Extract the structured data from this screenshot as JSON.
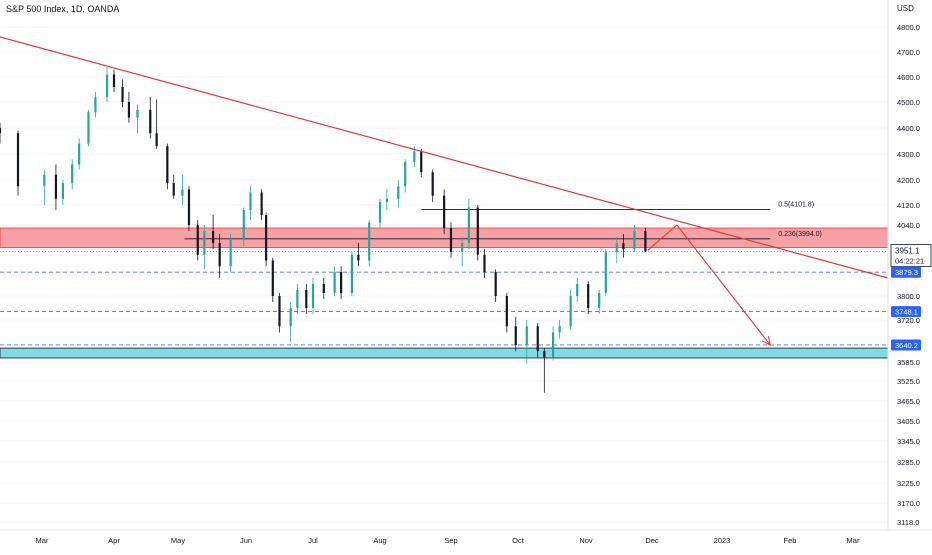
{
  "header": {
    "title": "S&P 500 Index, 1D, OANDA",
    "currency": "USD"
  },
  "colors": {
    "up": "#26a69a",
    "down": "#131722",
    "trendline": "#e53935",
    "resistance_zone": "#f7a1a6",
    "support_zone": "#7fdbe6",
    "arrow": "#e53935",
    "dashed": "#5b6ee1",
    "price_tag": "#2962ff",
    "grid": "#f0f3fa"
  },
  "chart_data": {
    "type": "candlestick",
    "title": "S&P 500 Index, 1D, OANDA",
    "ylabel": "USD",
    "ylim": [
      3080,
      4860
    ],
    "y_ticks": [
      "4800.0",
      "4700.0",
      "4600.0",
      "4500.0",
      "4400.0",
      "4300.0",
      "4200.0",
      "4120.0",
      "4040.0",
      "3960.0",
      "3880.0",
      "3800.0",
      "3720.0",
      "3640.0",
      "3585.0",
      "3525.0",
      "3465.0",
      "3405.0",
      "3345.0",
      "3285.0",
      "3225.0",
      "3170.0",
      "3118.0"
    ],
    "x_ticks": [
      "Mar",
      "Apr",
      "May",
      "Jun",
      "Jul",
      "Aug",
      "Sep",
      "Oct",
      "Nov",
      "Dec",
      "2023",
      "Feb",
      "Mar"
    ],
    "x_range": [
      "2022-02-22",
      "2023-03-20"
    ],
    "candles": [
      [
        "2022-02-22",
        4400,
        4420,
        4340,
        4380
      ],
      [
        "2022-02-25",
        4380,
        4390,
        4150,
        4180
      ],
      [
        "2022-03-02",
        4180,
        4240,
        4120,
        4220
      ],
      [
        "2022-03-07",
        4220,
        4260,
        4100,
        4140
      ],
      [
        "2022-03-10",
        4140,
        4200,
        4120,
        4190
      ],
      [
        "2022-03-14",
        4190,
        4280,
        4170,
        4260
      ],
      [
        "2022-03-17",
        4260,
        4360,
        4240,
        4340
      ],
      [
        "2022-03-21",
        4340,
        4470,
        4330,
        4460
      ],
      [
        "2022-03-24",
        4460,
        4540,
        4440,
        4520
      ],
      [
        "2022-03-29",
        4520,
        4640,
        4500,
        4610
      ],
      [
        "2022-04-01",
        4610,
        4630,
        4540,
        4560
      ],
      [
        "2022-04-05",
        4560,
        4590,
        4480,
        4500
      ],
      [
        "2022-04-08",
        4500,
        4540,
        4420,
        4440
      ],
      [
        "2022-04-12",
        4440,
        4490,
        4380,
        4470
      ],
      [
        "2022-04-18",
        4470,
        4520,
        4360,
        4380
      ],
      [
        "2022-04-21",
        4380,
        4510,
        4320,
        4330
      ],
      [
        "2022-04-26",
        4330,
        4340,
        4170,
        4190
      ],
      [
        "2022-04-29",
        4190,
        4220,
        4140,
        4150
      ],
      [
        "2022-05-03",
        4150,
        4220,
        4120,
        4170
      ],
      [
        "2022-05-06",
        4170,
        4180,
        4020,
        4040
      ],
      [
        "2022-05-10",
        4040,
        4060,
        3920,
        3940
      ],
      [
        "2022-05-13",
        3940,
        4040,
        3890,
        4020
      ],
      [
        "2022-05-17",
        4020,
        4080,
        3960,
        3980
      ],
      [
        "2022-05-20",
        3980,
        4010,
        3860,
        3900
      ],
      [
        "2022-05-25",
        3900,
        4010,
        3880,
        3990
      ],
      [
        "2022-05-31",
        3990,
        4110,
        3970,
        4100
      ],
      [
        "2022-06-03",
        4100,
        4180,
        4060,
        4160
      ],
      [
        "2022-06-08",
        4160,
        4170,
        4060,
        4080
      ],
      [
        "2022-06-10",
        4080,
        4090,
        3900,
        3920
      ],
      [
        "2022-06-13",
        3920,
        3930,
        3780,
        3800
      ],
      [
        "2022-06-16",
        3800,
        3810,
        3680,
        3700
      ],
      [
        "2022-06-21",
        3700,
        3780,
        3650,
        3760
      ],
      [
        "2022-06-24",
        3760,
        3840,
        3740,
        3820
      ],
      [
        "2022-06-28",
        3820,
        3840,
        3740,
        3760
      ],
      [
        "2022-07-01",
        3760,
        3860,
        3740,
        3840
      ],
      [
        "2022-07-06",
        3840,
        3860,
        3790,
        3810
      ],
      [
        "2022-07-11",
        3810,
        3900,
        3800,
        3880
      ],
      [
        "2022-07-14",
        3880,
        3900,
        3790,
        3810
      ],
      [
        "2022-07-19",
        3810,
        3950,
        3800,
        3940
      ],
      [
        "2022-07-22",
        3940,
        3980,
        3900,
        3920
      ],
      [
        "2022-07-27",
        3920,
        4060,
        3900,
        4050
      ],
      [
        "2022-08-01",
        4050,
        4140,
        4030,
        4130
      ],
      [
        "2022-08-04",
        4130,
        4170,
        4100,
        4140
      ],
      [
        "2022-08-09",
        4140,
        4200,
        4110,
        4180
      ],
      [
        "2022-08-12",
        4180,
        4280,
        4160,
        4270
      ],
      [
        "2022-08-16",
        4270,
        4330,
        4250,
        4310
      ],
      [
        "2022-08-19",
        4310,
        4320,
        4210,
        4230
      ],
      [
        "2022-08-24",
        4230,
        4240,
        4130,
        4150
      ],
      [
        "2022-08-29",
        4150,
        4170,
        4010,
        4030
      ],
      [
        "2022-09-01",
        4030,
        4050,
        3930,
        3950
      ],
      [
        "2022-09-06",
        3950,
        4000,
        3900,
        3980
      ],
      [
        "2022-09-09",
        3980,
        4140,
        3960,
        4110
      ],
      [
        "2022-09-13",
        4110,
        4120,
        3920,
        3940
      ],
      [
        "2022-09-16",
        3940,
        3960,
        3860,
        3880
      ],
      [
        "2022-09-21",
        3880,
        3890,
        3780,
        3800
      ],
      [
        "2022-09-26",
        3800,
        3810,
        3680,
        3700
      ],
      [
        "2022-09-30",
        3700,
        3730,
        3620,
        3640
      ],
      [
        "2022-10-05",
        3640,
        3720,
        3580,
        3700
      ],
      [
        "2022-10-10",
        3700,
        3710,
        3600,
        3620
      ],
      [
        "2022-10-13",
        3620,
        3630,
        3490,
        3600
      ],
      [
        "2022-10-17",
        3600,
        3700,
        3590,
        3680
      ],
      [
        "2022-10-20",
        3680,
        3720,
        3660,
        3700
      ],
      [
        "2022-10-25",
        3700,
        3820,
        3690,
        3800
      ],
      [
        "2022-10-28",
        3800,
        3860,
        3780,
        3840
      ],
      [
        "2022-11-02",
        3840,
        3850,
        3740,
        3760
      ],
      [
        "2022-11-07",
        3760,
        3820,
        3740,
        3810
      ],
      [
        "2022-11-10",
        3810,
        3960,
        3800,
        3950
      ],
      [
        "2022-11-15",
        3950,
        4000,
        3910,
        3980
      ],
      [
        "2022-11-18",
        3980,
        4010,
        3930,
        3960
      ],
      [
        "2022-11-23",
        3960,
        4040,
        3950,
        4020
      ],
      [
        "2022-11-28",
        4020,
        4030,
        3950,
        3951.1
      ]
    ],
    "annotations": {
      "trendline": {
        "from": [
          "2022-02-22",
          4760
        ],
        "to": [
          "2023-03-20",
          3860
        ]
      },
      "resistance_zone": {
        "from": 3965,
        "to": 4030
      },
      "support_zone": {
        "from": 3598,
        "to": 3630
      },
      "fib_050": {
        "label": "0.5(4101.8)",
        "value": 4101.8,
        "from": "2022-08-19",
        "to": "2023-01-23"
      },
      "fib_0236": {
        "label": "0.236(3994.0)",
        "value": 3994.0,
        "from": "2022-05-04",
        "to": "2023-01-23"
      },
      "dashed_levels": [
        3879.3,
        3748.1,
        3640.2
      ],
      "projection_path": [
        [
          "2022-11-29",
          3955
        ],
        [
          "2022-12-12",
          4040
        ],
        [
          "2023-01-23",
          3640
        ]
      ]
    },
    "price_labels": [
      {
        "text": "3951.1",
        "sub": "04:22:21",
        "value": 3951.1,
        "kind": "last"
      },
      {
        "text": "3879.3",
        "value": 3879.3,
        "kind": "level"
      },
      {
        "text": "3748.1",
        "value": 3748.1,
        "kind": "level"
      },
      {
        "text": "3640.2",
        "value": 3640.2,
        "kind": "level"
      }
    ]
  }
}
